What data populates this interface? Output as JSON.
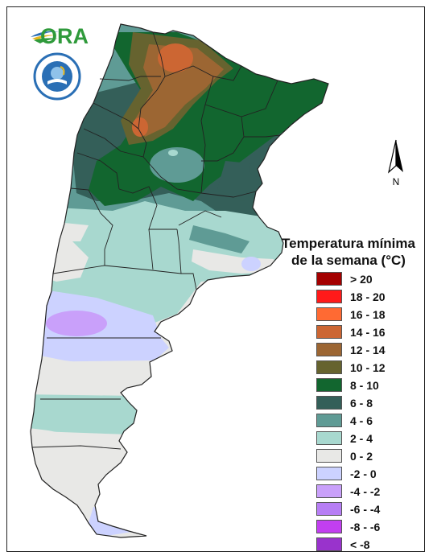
{
  "logo": {
    "text": "ORA",
    "brand_green": "#2f9a3b",
    "brand_blue": "#2a6fb5",
    "brand_yellow": "#e6b820"
  },
  "seal": {
    "text": "SERVICIO METEOROLÓGICO NACIONAL · ARGENTINA"
  },
  "legend": {
    "title_line1": "Temperatura mínima",
    "title_line2": "de la semana (°C)",
    "items": [
      {
        "label": "> 20",
        "color": "#a40000"
      },
      {
        "label": "18 - 20",
        "color": "#ff1a1a"
      },
      {
        "label": "16 - 18",
        "color": "#ff6a33"
      },
      {
        "label": "14 - 16",
        "color": "#cc6633"
      },
      {
        "label": "12 - 14",
        "color": "#9c6633"
      },
      {
        "label": "10 - 12",
        "color": "#66632f"
      },
      {
        "label": "8 - 10",
        "color": "#12662f"
      },
      {
        "label": "6 - 8",
        "color": "#345f59"
      },
      {
        "label": "4 - 6",
        "color": "#5f9b95"
      },
      {
        "label": "2 - 4",
        "color": "#a8d8cf"
      },
      {
        "label": "0 - 2",
        "color": "#e8e8e6"
      },
      {
        "label": "-2 - 0",
        "color": "#ccd2ff"
      },
      {
        "label": "-4 - -2",
        "color": "#c9a0fa"
      },
      {
        "label": "-6 - -4",
        "color": "#b77ef5"
      },
      {
        "label": "-8 - -6",
        "color": "#c23ff0"
      },
      {
        "label": "< -8",
        "color": "#9933cc"
      }
    ]
  }
}
